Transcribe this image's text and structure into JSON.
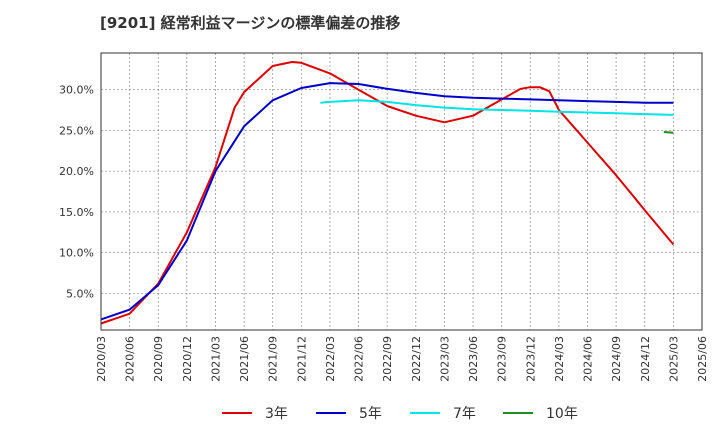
{
  "chart_data": {
    "type": "line",
    "title": "[9201]  経常利益マージンの標準偏差の推移",
    "xlabel": "",
    "ylabel": "",
    "x_ticks": [
      "2020/03",
      "2020/06",
      "2020/09",
      "2020/12",
      "2021/03",
      "2021/06",
      "2021/09",
      "2021/12",
      "2022/03",
      "2022/06",
      "2022/09",
      "2022/12",
      "2023/03",
      "2023/06",
      "2023/09",
      "2023/12",
      "2024/03",
      "2024/06",
      "2024/09",
      "2024/12",
      "2025/03",
      "2025/06"
    ],
    "y_ticks": [
      "5.0%",
      "10.0%",
      "15.0%",
      "20.0%",
      "25.0%",
      "30.0%"
    ],
    "y_tick_values": [
      5,
      10,
      15,
      20,
      25,
      30
    ],
    "ylim": [
      0.5,
      34.5
    ],
    "x_start": "2020/03",
    "x_end": "2025/06",
    "grid": true,
    "legend_position": "bottom",
    "series": [
      {
        "name": "3年",
        "color": "#dd0000",
        "points": [
          [
            "2020/03",
            1.3
          ],
          [
            "2020/06",
            2.5
          ],
          [
            "2020/09",
            6.2
          ],
          [
            "2020/12",
            12.5
          ],
          [
            "2021/03",
            20.5
          ],
          [
            "2021/05",
            27.8
          ],
          [
            "2021/06",
            29.7
          ],
          [
            "2021/09",
            32.9
          ],
          [
            "2021/11",
            33.4
          ],
          [
            "2021/12",
            33.3
          ],
          [
            "2022/03",
            32.0
          ],
          [
            "2022/06",
            30.0
          ],
          [
            "2022/09",
            28.0
          ],
          [
            "2022/12",
            26.8
          ],
          [
            "2023/03",
            26.0
          ],
          [
            "2023/06",
            26.8
          ],
          [
            "2023/09",
            28.8
          ],
          [
            "2023/11",
            30.1
          ],
          [
            "2023/12",
            30.3
          ],
          [
            "2024/01",
            30.3
          ],
          [
            "2024/02",
            29.8
          ],
          [
            "2024/03",
            27.5
          ],
          [
            "2024/06",
            23.5
          ],
          [
            "2024/09",
            19.5
          ],
          [
            "2024/12",
            15.2
          ],
          [
            "2025/03",
            11.0
          ]
        ]
      },
      {
        "name": "5年",
        "color": "#0000cc",
        "points": [
          [
            "2020/03",
            1.8
          ],
          [
            "2020/06",
            3.0
          ],
          [
            "2020/09",
            6.0
          ],
          [
            "2020/12",
            11.5
          ],
          [
            "2021/03",
            20.0
          ],
          [
            "2021/06",
            25.5
          ],
          [
            "2021/09",
            28.7
          ],
          [
            "2021/12",
            30.2
          ],
          [
            "2022/03",
            30.8
          ],
          [
            "2022/06",
            30.7
          ],
          [
            "2022/09",
            30.1
          ],
          [
            "2022/12",
            29.6
          ],
          [
            "2023/03",
            29.2
          ],
          [
            "2023/06",
            29.0
          ],
          [
            "2023/09",
            28.9
          ],
          [
            "2023/12",
            28.8
          ],
          [
            "2024/03",
            28.7
          ],
          [
            "2024/06",
            28.6
          ],
          [
            "2024/09",
            28.5
          ],
          [
            "2024/12",
            28.4
          ],
          [
            "2025/03",
            28.4
          ]
        ]
      },
      {
        "name": "7年",
        "color": "#00e5e5",
        "points": [
          [
            "2022/02",
            28.4
          ],
          [
            "2022/03",
            28.5
          ],
          [
            "2022/06",
            28.7
          ],
          [
            "2022/09",
            28.5
          ],
          [
            "2022/12",
            28.1
          ],
          [
            "2023/03",
            27.8
          ],
          [
            "2023/06",
            27.6
          ],
          [
            "2023/09",
            27.5
          ],
          [
            "2023/12",
            27.4
          ],
          [
            "2024/03",
            27.3
          ],
          [
            "2024/06",
            27.2
          ],
          [
            "2024/09",
            27.1
          ],
          [
            "2024/12",
            27.0
          ],
          [
            "2025/03",
            26.9
          ]
        ]
      },
      {
        "name": "10年",
        "color": "#228b22",
        "points": [
          [
            "2025/02",
            24.8
          ],
          [
            "2025/03",
            24.7
          ]
        ]
      }
    ]
  }
}
